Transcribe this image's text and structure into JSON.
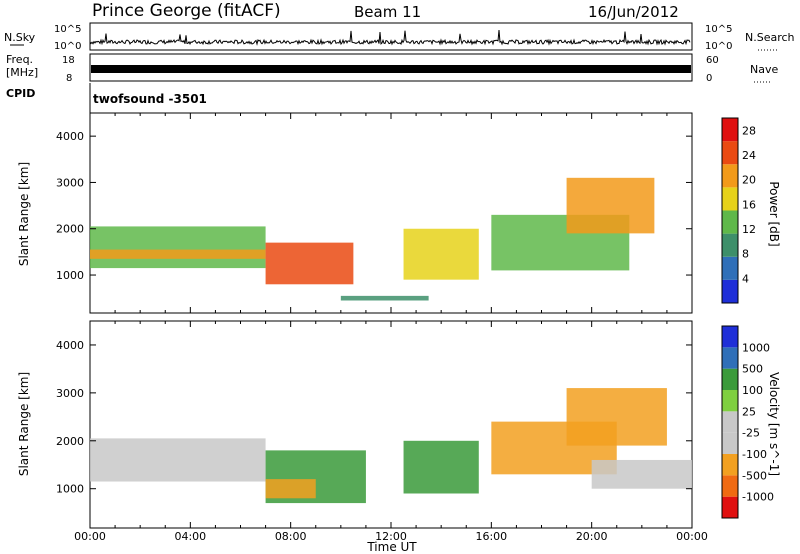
{
  "header": {
    "radar": "Prince George (fitACF)",
    "beam": "Beam 11",
    "date": "16/Jun/2012"
  },
  "panels": {
    "nsky_label": "N.Sky",
    "nsearch_label": "N.Search",
    "nsky_ticks": [
      "10^5",
      "10^0"
    ],
    "nsearch_ticks": [
      "10^5",
      "10^0"
    ],
    "freq_label_line1": "Freq.",
    "freq_label_line2": "[MHz]",
    "freq_ticks": [
      "18",
      "8"
    ],
    "nave_label": "Nave",
    "nave_ticks": [
      "60",
      "0"
    ],
    "cpid_label": "CPID",
    "cpid_text": "twofsound -3501"
  },
  "colors": {
    "power_scale": [
      "#1f2fd8",
      "#2f6fb8",
      "#3d8f6a",
      "#5fb84a",
      "#e6d21a",
      "#f29a1a",
      "#ea4a12",
      "#e01010"
    ],
    "velocity_scale": [
      "#e01010",
      "#f06a12",
      "#f2a020",
      "#c8c8c8",
      "#c8c8c8",
      "#7fd040",
      "#3a9a3a",
      "#2f6fb8",
      "#1f2fd8"
    ]
  },
  "chart_data": [
    {
      "type": "heatmap",
      "title": "",
      "ylabel": "Slant Range [km]",
      "xlabel": "",
      "ylim": [
        180,
        4500
      ],
      "yticks": [
        "1000",
        "2000",
        "3000",
        "4000"
      ],
      "xticks": [
        "00:00",
        "04:00",
        "08:00",
        "12:00",
        "16:00",
        "20:00",
        "00:00"
      ],
      "colorbar": {
        "label": "Power [dB]",
        "ticks": [
          "4",
          "8",
          "12",
          "16",
          "20",
          "24",
          "28"
        ],
        "range": [
          0,
          30
        ]
      },
      "regions": [
        {
          "t": [
            0,
            7
          ],
          "range": [
            1150,
            2050
          ],
          "value": 13
        },
        {
          "t": [
            0,
            7
          ],
          "range": [
            1350,
            1550
          ],
          "value": 21
        },
        {
          "t": [
            7,
            10.5
          ],
          "range": [
            800,
            1700
          ],
          "value": 24
        },
        {
          "t": [
            12.5,
            15.5
          ],
          "range": [
            900,
            2000
          ],
          "value": 18
        },
        {
          "t": [
            16,
            21.5
          ],
          "range": [
            1100,
            2300
          ],
          "value": 14
        },
        {
          "t": [
            19,
            22.5
          ],
          "range": [
            1900,
            3100
          ],
          "value": 20
        },
        {
          "t": [
            10,
            13.5
          ],
          "range": [
            450,
            550
          ],
          "value": 8
        }
      ]
    },
    {
      "type": "heatmap",
      "title": "",
      "ylabel": "Slant Range [km]",
      "xlabel": "Time UT",
      "ylim": [
        180,
        4500
      ],
      "yticks": [
        "1000",
        "2000",
        "3000",
        "4000"
      ],
      "xticks": [
        "00:00",
        "04:00",
        "08:00",
        "12:00",
        "16:00",
        "20:00",
        "00:00"
      ],
      "colorbar": {
        "label": "Velocity [m s^-1]",
        "ticks": [
          "1000",
          "500",
          "100",
          "25",
          "-25",
          "-100",
          "-500",
          "-1000"
        ]
      },
      "regions": [
        {
          "t": [
            0,
            7
          ],
          "range": [
            1150,
            2050
          ],
          "value": 0
        },
        {
          "t": [
            7,
            11
          ],
          "range": [
            700,
            1800
          ],
          "value": 200
        },
        {
          "t": [
            7,
            9
          ],
          "range": [
            800,
            1200
          ],
          "value": -300
        },
        {
          "t": [
            12.5,
            15.5
          ],
          "range": [
            900,
            2000
          ],
          "value": 150
        },
        {
          "t": [
            16,
            21
          ],
          "range": [
            1300,
            2400
          ],
          "value": -300
        },
        {
          "t": [
            19,
            23
          ],
          "range": [
            1900,
            3100
          ],
          "value": -250
        },
        {
          "t": [
            20,
            24
          ],
          "range": [
            1000,
            1600
          ],
          "value": 0
        }
      ]
    }
  ]
}
